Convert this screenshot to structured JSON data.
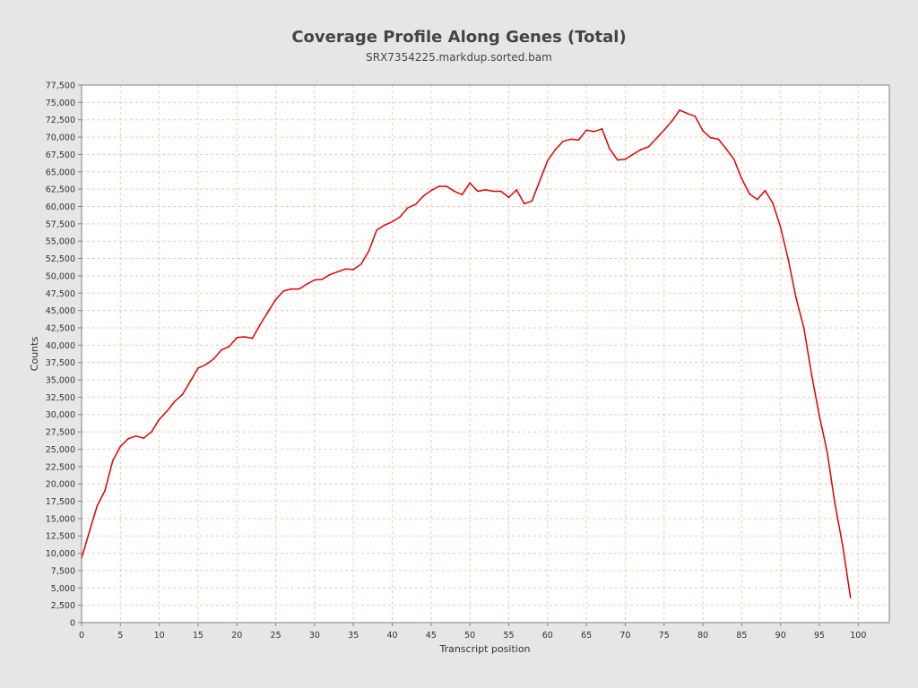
{
  "chart_data": {
    "type": "line",
    "title": "Coverage Profile Along Genes (Total)",
    "subtitle": "SRX7354225.markdup.sorted.bam",
    "xlabel": "Transcript position",
    "ylabel": "Counts",
    "xlim": [
      0,
      104
    ],
    "ylim": [
      0,
      77500
    ],
    "x_ticks": [
      0,
      5,
      10,
      15,
      20,
      25,
      30,
      35,
      40,
      45,
      50,
      55,
      60,
      65,
      70,
      75,
      80,
      85,
      90,
      95,
      100
    ],
    "y_ticks": [
      0,
      2500,
      5000,
      7500,
      10000,
      12500,
      15000,
      17500,
      20000,
      22500,
      25000,
      27500,
      30000,
      32500,
      35000,
      37500,
      40000,
      42500,
      45000,
      47500,
      50000,
      52500,
      55000,
      57500,
      60000,
      62500,
      65000,
      67500,
      70000,
      72500,
      75000,
      77500
    ],
    "grid": true,
    "line_color": "#e00000",
    "grid_color": "#f0c8b4",
    "series": [
      {
        "x": [
          0,
          1,
          2,
          3,
          4,
          5,
          6,
          7,
          8,
          9,
          10,
          11,
          12,
          13,
          14,
          15,
          16,
          17,
          18,
          19,
          20,
          21,
          22,
          23,
          24,
          25,
          26,
          27,
          28,
          29,
          30,
          31,
          32,
          33,
          34,
          35,
          36,
          37,
          38,
          39,
          40,
          41,
          42,
          43,
          44,
          45,
          46,
          47,
          48,
          49,
          50,
          51,
          52,
          53,
          54,
          55,
          56,
          57,
          58,
          59,
          60,
          61,
          62,
          63,
          64,
          65,
          66,
          67,
          68,
          69,
          70,
          71,
          72,
          73,
          74,
          75,
          76,
          77,
          78,
          79,
          80,
          81,
          82,
          83,
          84,
          85,
          86,
          87,
          88,
          89,
          90,
          91,
          92,
          93,
          94,
          95,
          96,
          97,
          98,
          99
        ],
        "values": [
          9300,
          13100,
          16800,
          19000,
          23300,
          25400,
          26500,
          26900,
          26600,
          27500,
          29300,
          30500,
          31900,
          32900,
          34800,
          36700,
          37200,
          38000,
          39300,
          39800,
          41100,
          41200,
          41000,
          43000,
          44800,
          46600,
          47800,
          48100,
          48100,
          48800,
          49400,
          49500,
          50200,
          50600,
          51000,
          50900,
          51700,
          53600,
          56600,
          57300,
          57800,
          58500,
          59800,
          60300,
          61500,
          62300,
          62900,
          62900,
          62200,
          61700,
          63400,
          62200,
          62400,
          62200,
          62200,
          61300,
          62400,
          60400,
          60800,
          63700,
          66600,
          68200,
          69400,
          69700,
          69600,
          71000,
          70800,
          71200,
          68300,
          66700,
          66800,
          67500,
          68200,
          68600,
          69800,
          71000,
          72300,
          73900,
          73400,
          73000,
          70900,
          69900,
          69700,
          68300,
          66800,
          64000,
          61800,
          61000,
          62300,
          60500,
          57000,
          52300,
          46800,
          42500,
          35700,
          29800,
          24600,
          17100,
          11100,
          3600
        ]
      }
    ]
  }
}
